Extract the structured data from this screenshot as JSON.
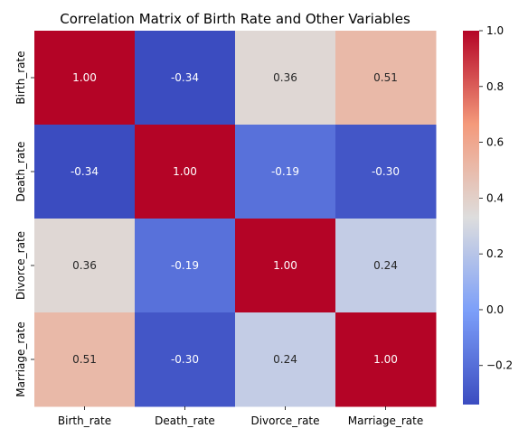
{
  "chart_data": {
    "type": "heatmap",
    "title": "Correlation Matrix of Birth Rate and Other Variables",
    "x_labels": [
      "Birth_rate",
      "Death_rate",
      "Divorce_rate",
      "Marriage_rate"
    ],
    "y_labels": [
      "Birth_rate",
      "Death_rate",
      "Divorce_rate",
      "Marriage_rate"
    ],
    "values": [
      [
        1.0,
        -0.34,
        0.36,
        0.51
      ],
      [
        -0.34,
        1.0,
        -0.19,
        -0.3
      ],
      [
        0.36,
        -0.19,
        1.0,
        0.24
      ],
      [
        0.51,
        -0.3,
        0.24,
        1.0
      ]
    ],
    "value_format": "0.00",
    "colormap": "coolwarm",
    "vmin": -0.34,
    "vmax": 1.0,
    "colorbar_ticks": [
      1.0,
      0.8,
      0.6,
      0.4,
      0.2,
      0.0,
      -0.2
    ],
    "colorbar_tick_labels": [
      "1.0",
      "0.8",
      "0.6",
      "0.4",
      "0.2",
      "0.0",
      "−0.2"
    ]
  }
}
